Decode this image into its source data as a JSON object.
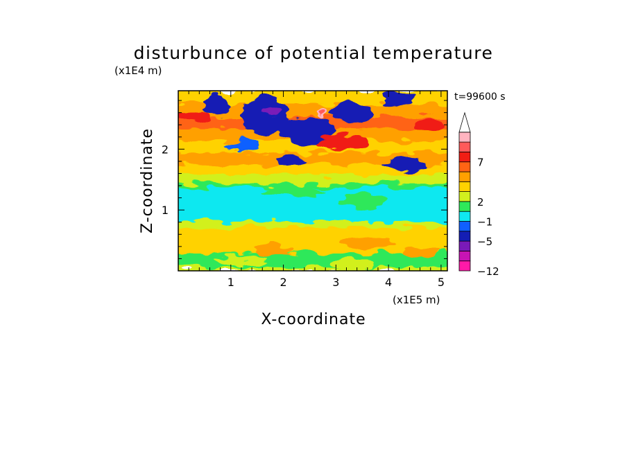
{
  "chart_data": {
    "type": "heatmap",
    "title": "disturbunce of potential temperature",
    "time_label": "t=99600 s",
    "xlabel": "X-coordinate",
    "ylabel": "Z-coordinate",
    "x_scale_label": "(x1E5 m)",
    "y_scale_label": "(x1E4 m)",
    "xlim": [
      0,
      5.12
    ],
    "ylim": [
      0,
      2.96
    ],
    "x_ticks": [
      1,
      2,
      3,
      4,
      5
    ],
    "y_ticks": [
      1,
      2
    ],
    "x_tick_labels": [
      "1",
      "2",
      "3",
      "4",
      "5"
    ],
    "y_tick_labels": [
      "1",
      "2"
    ],
    "grid": false,
    "legend": "right colorbar",
    "colorbar": {
      "tick_labels": [
        "7",
        "2",
        "−1",
        "−5",
        "−12"
      ],
      "tick_positions_from_bottom": [
        11,
        7,
        5,
        3,
        0
      ],
      "colors": [
        "#ff1aa8",
        "#c814b4",
        "#7a1ab8",
        "#141eb4",
        "#1060ff",
        "#10e8f0",
        "#2ee85a",
        "#d2f01e",
        "#ffd200",
        "#ffa000",
        "#ff6414",
        "#f01e14",
        "#ff5a5a",
        "#ffb4c0"
      ],
      "extend": "max"
    },
    "bands": [
      {
        "z": [
          0.0,
          0.07
        ],
        "class": 7
      },
      {
        "z": [
          0.07,
          0.3
        ],
        "class": 6
      },
      {
        "z": [
          0.3,
          0.5
        ],
        "class": 8
      },
      {
        "z": [
          0.5,
          0.72
        ],
        "class": 8
      },
      {
        "z": [
          0.72,
          0.82
        ],
        "class": 7
      },
      {
        "z": [
          0.82,
          1.38
        ],
        "class": 5
      },
      {
        "z": [
          1.38,
          1.45
        ],
        "class": 6
      },
      {
        "z": [
          1.45,
          1.6
        ],
        "class": 7
      },
      {
        "z": [
          1.6,
          1.75
        ],
        "class": 8
      },
      {
        "z": [
          1.75,
          1.95
        ],
        "class": 9
      },
      {
        "z": [
          1.95,
          2.15
        ],
        "class": 8
      },
      {
        "z": [
          2.15,
          2.35
        ],
        "class": 9
      },
      {
        "z": [
          2.35,
          2.55
        ],
        "class": 10
      },
      {
        "z": [
          2.55,
          2.75
        ],
        "class": 9
      },
      {
        "z": [
          2.75,
          2.96
        ],
        "class": 8
      }
    ],
    "features": [
      {
        "x": 1.65,
        "z": 2.55,
        "rx": 0.45,
        "rz": 0.3,
        "class": 3
      },
      {
        "x": 1.75,
        "z": 2.62,
        "rx": 0.15,
        "rz": 0.1,
        "class": 2
      },
      {
        "x": 2.45,
        "z": 2.3,
        "rx": 0.55,
        "rz": 0.22,
        "class": 3
      },
      {
        "x": 3.3,
        "z": 2.6,
        "rx": 0.4,
        "rz": 0.16,
        "class": 3
      },
      {
        "x": 0.75,
        "z": 2.75,
        "rx": 0.25,
        "rz": 0.18,
        "class": 3
      },
      {
        "x": 4.15,
        "z": 2.82,
        "rx": 0.3,
        "rz": 0.12,
        "class": 3
      },
      {
        "x": 4.35,
        "z": 1.75,
        "rx": 0.45,
        "rz": 0.1,
        "class": 3
      },
      {
        "x": 2.2,
        "z": 1.8,
        "rx": 0.3,
        "rz": 0.1,
        "class": 3
      },
      {
        "x": 1.2,
        "z": 2.05,
        "rx": 0.35,
        "rz": 0.1,
        "class": 4
      },
      {
        "x": 2.75,
        "z": 2.6,
        "rx": 0.1,
        "rz": 0.1,
        "class": 13
      },
      {
        "x": 2.75,
        "z": 2.6,
        "rx": 0.06,
        "rz": 0.06,
        "class": 12
      },
      {
        "x": 0.3,
        "z": 2.55,
        "rx": 0.35,
        "rz": 0.1,
        "class": 11
      },
      {
        "x": 3.1,
        "z": 2.1,
        "rx": 0.5,
        "rz": 0.12,
        "class": 11
      },
      {
        "x": 4.8,
        "z": 2.4,
        "rx": 0.3,
        "rz": 0.12,
        "class": 11
      },
      {
        "x": 3.55,
        "z": 1.15,
        "rx": 0.5,
        "rz": 0.12,
        "class": 6
      },
      {
        "x": 2.2,
        "z": 1.3,
        "rx": 0.6,
        "rz": 0.1,
        "class": 6
      },
      {
        "x": 2.3,
        "z": 1.42,
        "rx": 0.12,
        "rz": 0.08,
        "class": 7
      },
      {
        "x": 1.8,
        "z": 0.35,
        "rx": 0.4,
        "rz": 0.1,
        "class": 9
      },
      {
        "x": 3.6,
        "z": 0.45,
        "rx": 0.5,
        "rz": 0.1,
        "class": 9
      },
      {
        "x": 4.6,
        "z": 0.3,
        "rx": 0.3,
        "rz": 0.1,
        "class": 9
      },
      {
        "x": 1.2,
        "z": 0.18,
        "rx": 0.5,
        "rz": 0.08,
        "class": 7
      },
      {
        "x": 3.3,
        "z": 0.12,
        "rx": 0.4,
        "rz": 0.07,
        "class": 7
      }
    ]
  }
}
